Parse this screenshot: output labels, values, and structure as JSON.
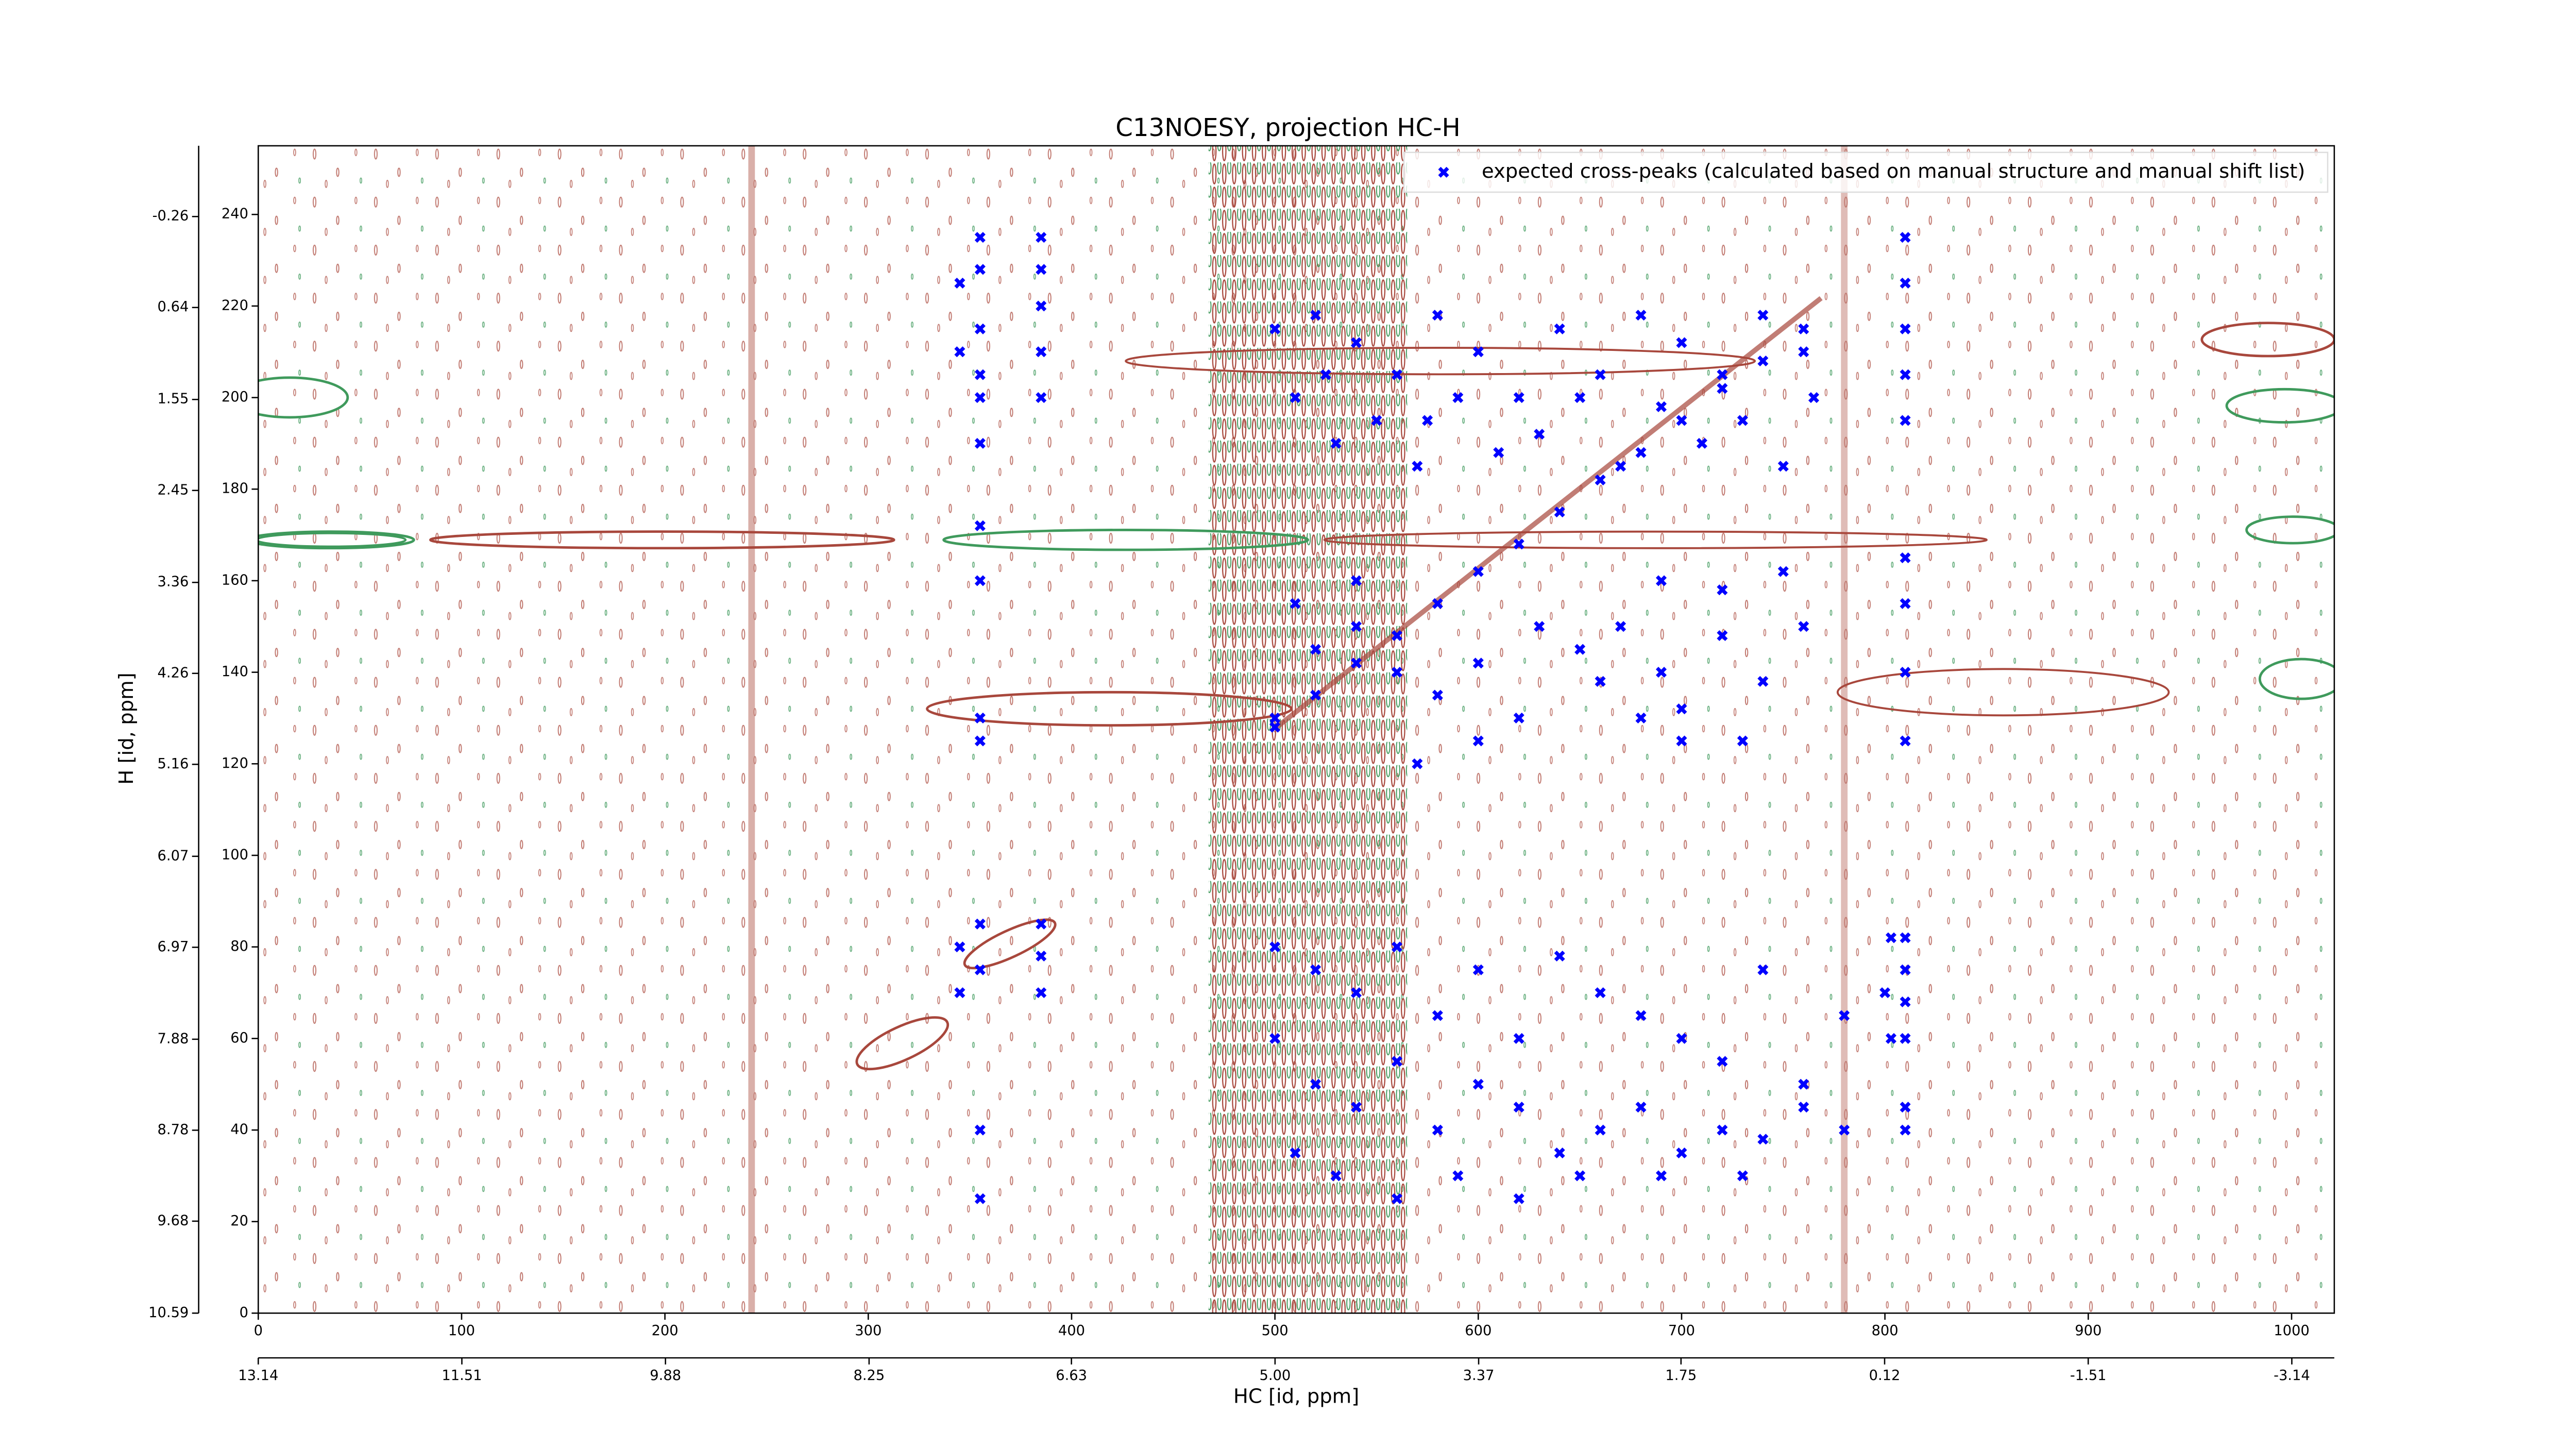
{
  "chart_data": {
    "type": "scatter",
    "title": "C13NOESY, projection HC-H",
    "x_label": "HC [id, ppm]",
    "y_label": "H [id, ppm]",
    "xlim": [
      0,
      1021
    ],
    "xticks": [
      0,
      100,
      200,
      300,
      400,
      500,
      600,
      700,
      800,
      900,
      1000
    ],
    "x2lim": [
      13.14,
      -3.48
    ],
    "x2ticks": [
      13.14,
      11.51,
      9.88,
      8.25,
      6.63,
      {
        "value": 5,
        "label": "5.00"
      },
      3.37,
      1.75,
      0.12,
      -1.51,
      -3.14
    ],
    "ylim": [
      0,
      255
    ],
    "yticks": [
      0,
      20,
      40,
      60,
      80,
      100,
      120,
      140,
      160,
      180,
      200,
      220,
      240
    ],
    "y2lim": [
      10.59,
      -0.96
    ],
    "y2ticks": [
      10.59,
      9.68,
      8.78,
      7.88,
      6.97,
      6.07,
      5.16,
      4.26,
      3.36,
      2.45,
      1.55,
      0.64,
      -0.26
    ],
    "legend": "upper right",
    "series": [
      {
        "name": "expected cross-peaks (calculated based on manual structure and manual shift list)",
        "color": "#0000ff",
        "x": [
          500,
          520,
          540,
          560,
          580,
          600,
          620,
          640,
          660,
          680,
          700,
          720,
          740,
          760,
          355,
          355,
          355,
          355,
          355,
          355,
          355,
          355,
          355,
          355,
          355,
          355,
          355,
          355,
          385,
          385,
          385,
          385,
          385,
          385,
          385,
          385,
          345,
          345,
          345,
          345,
          500,
          520,
          540,
          560,
          580,
          600,
          620,
          640,
          660,
          680,
          700,
          720,
          740,
          760,
          510,
          530,
          550,
          570,
          590,
          610,
          630,
          650,
          670,
          690,
          710,
          730,
          750,
          765,
          525,
          575,
          500,
          520,
          540,
          560,
          580,
          600,
          620,
          650,
          670,
          690,
          700,
          720,
          740,
          760,
          690,
          720,
          750,
          660,
          700,
          730,
          510,
          540,
          570,
          600,
          630,
          680,
          500,
          520,
          540,
          560,
          580,
          600,
          620,
          640,
          660,
          680,
          700,
          720,
          740,
          760,
          780,
          800,
          500,
          520,
          540,
          560,
          580,
          600,
          620,
          640,
          660,
          680,
          700,
          720,
          740,
          760,
          780,
          510,
          530,
          560,
          590,
          620,
          650,
          690,
          730,
          810,
          810,
          810,
          810,
          810,
          810,
          810,
          810,
          810,
          810,
          810,
          810,
          810,
          810,
          810,
          803,
          803
        ],
        "values": [
          128,
          135,
          142,
          148,
          155,
          162,
          168,
          175,
          182,
          188,
          195,
          202,
          208,
          215,
          235,
          228,
          215,
          205,
          200,
          190,
          172,
          160,
          130,
          125,
          85,
          75,
          40,
          25,
          235,
          228,
          220,
          210,
          200,
          85,
          78,
          70,
          225,
          210,
          80,
          70,
          215,
          218,
          212,
          205,
          218,
          210,
          200,
          215,
          205,
          218,
          212,
          205,
          218,
          210,
          200,
          190,
          195,
          185,
          200,
          188,
          192,
          200,
          185,
          198,
          190,
          195,
          185,
          200,
          205,
          195,
          130,
          145,
          150,
          140,
          135,
          142,
          130,
          145,
          150,
          140,
          132,
          148,
          138,
          150,
          160,
          158,
          162,
          138,
          125,
          125,
          155,
          160,
          120,
          125,
          150,
          130,
          80,
          75,
          70,
          80,
          65,
          75,
          60,
          78,
          70,
          65,
          60,
          55,
          75,
          50,
          65,
          70,
          60,
          50,
          45,
          55,
          40,
          50,
          45,
          35,
          40,
          45,
          35,
          40,
          38,
          45,
          40,
          35,
          30,
          25,
          30,
          25,
          30,
          30,
          30,
          235,
          225,
          215,
          205,
          195,
          165,
          155,
          140,
          125,
          82,
          75,
          68,
          60,
          45,
          40,
          82,
          60
        ]
      }
    ]
  }
}
